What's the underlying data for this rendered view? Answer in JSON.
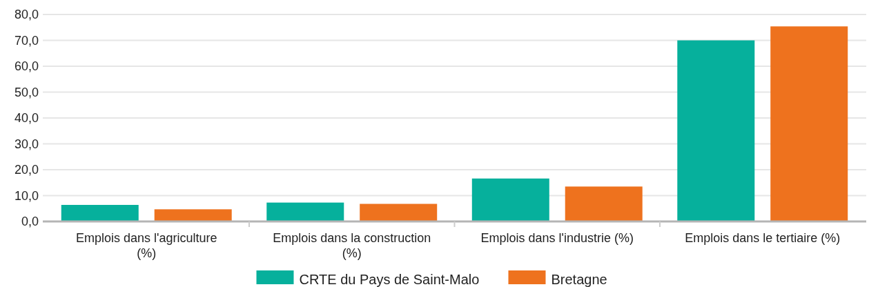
{
  "chart_data": {
    "type": "bar",
    "categories": [
      "Emplois dans l'agriculture (%)",
      "Emplois dans la construction (%)",
      "Emplois dans l'industrie (%)",
      "Emplois dans le tertiaire (%)"
    ],
    "series": [
      {
        "name": "CRTE du Pays de Saint-Malo",
        "color": "#06b09c",
        "values": [
          6.4,
          7.3,
          16.6,
          70.0
        ]
      },
      {
        "name": "Bretagne",
        "color": "#ee721e",
        "values": [
          4.7,
          6.8,
          13.5,
          75.4
        ]
      }
    ],
    "ylim": [
      0,
      80
    ],
    "yticks": [
      {
        "value": 0,
        "label": "0,0"
      },
      {
        "value": 10,
        "label": "10,0"
      },
      {
        "value": 20,
        "label": "20,0"
      },
      {
        "value": 30,
        "label": "30,0"
      },
      {
        "value": 40,
        "label": "40,0"
      },
      {
        "value": 50,
        "label": "50,0"
      },
      {
        "value": 60,
        "label": "60,0"
      },
      {
        "value": 70,
        "label": "70,0"
      },
      {
        "value": 80,
        "label": "80,0"
      }
    ],
    "grid": "y",
    "legend": "bottom"
  }
}
